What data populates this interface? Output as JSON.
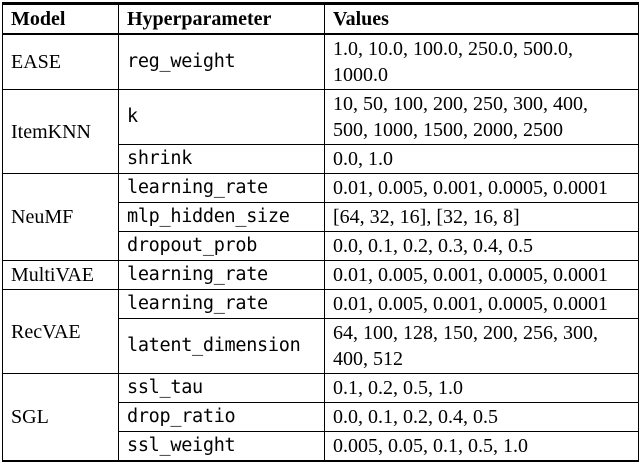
{
  "table": {
    "headers": [
      "Model",
      "Hyperparameter",
      "Values"
    ],
    "groups": [
      {
        "model": "EASE",
        "params": [
          {
            "name": "reg_weight",
            "values": "1.0, 10.0, 100.0, 250.0, 500.0, 1000.0"
          }
        ]
      },
      {
        "model": "ItemKNN",
        "params": [
          {
            "name": "k",
            "values": "10, 50, 100, 200, 250, 300, 400, 500, 1000, 1500, 2000, 2500"
          },
          {
            "name": "shrink",
            "values": "0.0, 1.0"
          }
        ]
      },
      {
        "model": "NeuMF",
        "params": [
          {
            "name": "learning_rate",
            "values": "0.01, 0.005, 0.001, 0.0005, 0.0001"
          },
          {
            "name": "mlp_hidden_size",
            "values": "[64, 32, 16], [32, 16, 8]"
          },
          {
            "name": "dropout_prob",
            "values": "0.0, 0.1, 0.2, 0.3, 0.4, 0.5"
          }
        ]
      },
      {
        "model": "MultiVAE",
        "params": [
          {
            "name": "learning_rate",
            "values": "0.01, 0.005, 0.001, 0.0005, 0.0001"
          }
        ]
      },
      {
        "model": "RecVAE",
        "params": [
          {
            "name": "learning_rate",
            "values": "0.01, 0.005, 0.001, 0.0005, 0.0001"
          },
          {
            "name": "latent_dimension",
            "values": "64, 100, 128, 150, 200, 256, 300, 400, 512"
          }
        ]
      },
      {
        "model": "SGL",
        "params": [
          {
            "name": "ssl_tau",
            "values": "0.1, 0.2, 0.5, 1.0"
          },
          {
            "name": "drop_ratio",
            "values": "0.0, 0.1, 0.2, 0.4, 0.5"
          },
          {
            "name": "ssl_weight",
            "values": "0.005, 0.05, 0.1, 0.5, 1.0"
          }
        ]
      }
    ],
    "colors": {
      "border": "#000000",
      "text": "#000000",
      "background": "#ffffff"
    }
  }
}
